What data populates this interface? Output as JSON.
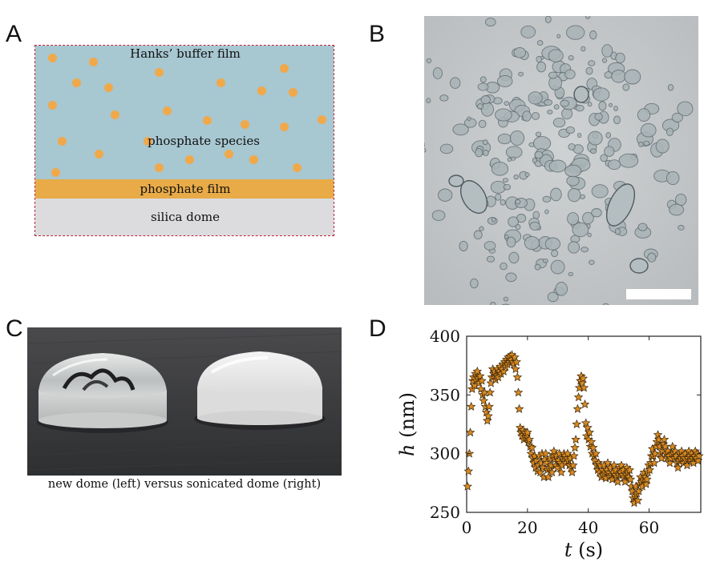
{
  "panels": {
    "a": {
      "letter": "A",
      "labels": {
        "buffer": "Hanks’ buffer film",
        "species": "phosphate species",
        "film": "phosphate film",
        "dome": "silica dome"
      }
    },
    "b": {
      "letter": "B"
    },
    "c": {
      "letter": "C",
      "caption": "new dome (left) versus sonicated dome (right)"
    },
    "d": {
      "letter": "D"
    }
  },
  "colors": {
    "buffer": "#a7c7d1",
    "film": "#e8ab47",
    "dome": "#dcdcdf",
    "particle": "#f0a94a",
    "marker": "#d98a22"
  },
  "chart_data": {
    "type": "scatter",
    "title": "",
    "xlabel_italic": "t",
    "xlabel_unit": "(s)",
    "ylabel_italic": "h",
    "ylabel_unit": "(nm)",
    "xlim": [
      0,
      77
    ],
    "ylim": [
      250,
      400
    ],
    "xticks": [
      0,
      20,
      40,
      60
    ],
    "yticks": [
      250,
      300,
      350,
      400
    ],
    "marker": "star",
    "series": [
      {
        "name": "h",
        "points": [
          [
            0.3,
            272
          ],
          [
            0.6,
            285
          ],
          [
            0.9,
            300
          ],
          [
            1.2,
            318
          ],
          [
            1.5,
            340
          ],
          [
            1.8,
            355
          ],
          [
            2.0,
            362
          ],
          [
            2.3,
            365
          ],
          [
            2.6,
            358
          ],
          [
            2.9,
            368
          ],
          [
            3.2,
            362
          ],
          [
            3.5,
            370
          ],
          [
            3.8,
            364
          ],
          [
            4.1,
            360
          ],
          [
            4.4,
            366
          ],
          [
            4.7,
            355
          ],
          [
            5.0,
            362
          ],
          [
            5.3,
            350
          ],
          [
            5.6,
            345
          ],
          [
            5.9,
            352
          ],
          [
            6.2,
            340
          ],
          [
            6.5,
            335
          ],
          [
            6.8,
            328
          ],
          [
            7.1,
            332
          ],
          [
            7.4,
            340
          ],
          [
            7.7,
            352
          ],
          [
            8.0,
            360
          ],
          [
            8.3,
            365
          ],
          [
            8.6,
            372
          ],
          [
            8.9,
            368
          ],
          [
            9.2,
            370
          ],
          [
            9.5,
            363
          ],
          [
            9.8,
            366
          ],
          [
            10.1,
            372
          ],
          [
            10.4,
            365
          ],
          [
            10.7,
            370
          ],
          [
            11.0,
            374
          ],
          [
            11.3,
            368
          ],
          [
            11.6,
            372
          ],
          [
            11.9,
            376
          ],
          [
            12.2,
            370
          ],
          [
            12.5,
            378
          ],
          [
            12.8,
            374
          ],
          [
            13.1,
            380
          ],
          [
            13.4,
            376
          ],
          [
            13.7,
            382
          ],
          [
            14.0,
            378
          ],
          [
            14.3,
            383
          ],
          [
            14.6,
            380
          ],
          [
            14.9,
            384
          ],
          [
            15.2,
            378
          ],
          [
            15.5,
            376
          ],
          [
            15.8,
            382
          ],
          [
            16.1,
            372
          ],
          [
            16.4,
            378
          ],
          [
            16.7,
            365
          ],
          [
            17.0,
            352
          ],
          [
            17.3,
            338
          ],
          [
            17.6,
            322
          ],
          [
            17.9,
            318
          ],
          [
            18.2,
            315
          ],
          [
            18.5,
            320
          ],
          [
            18.8,
            312
          ],
          [
            19.1,
            318
          ],
          [
            19.4,
            314
          ],
          [
            19.7,
            316
          ],
          [
            20.0,
            318
          ],
          [
            20.3,
            310
          ],
          [
            20.6,
            312
          ],
          [
            20.9,
            306
          ],
          [
            21.2,
            300
          ],
          [
            21.5,
            305
          ],
          [
            21.8,
            296
          ],
          [
            22.1,
            292
          ],
          [
            22.4,
            298
          ],
          [
            22.7,
            288
          ],
          [
            23.0,
            294
          ],
          [
            23.3,
            285
          ],
          [
            23.6,
            290
          ],
          [
            23.9,
            298
          ],
          [
            24.2,
            284
          ],
          [
            24.5,
            292
          ],
          [
            24.8,
            300
          ],
          [
            25.1,
            288
          ],
          [
            25.4,
            280
          ],
          [
            25.7,
            295
          ],
          [
            26.0,
            300
          ],
          [
            26.3,
            292
          ],
          [
            26.6,
            286
          ],
          [
            26.9,
            280
          ],
          [
            27.2,
            288
          ],
          [
            27.5,
            296
          ],
          [
            27.8,
            290
          ],
          [
            28.1,
            284
          ],
          [
            28.4,
            299
          ],
          [
            28.7,
            302
          ],
          [
            29.0,
            295
          ],
          [
            29.3,
            290
          ],
          [
            29.6,
            298
          ],
          [
            29.9,
            288
          ],
          [
            30.2,
            294
          ],
          [
            30.5,
            300
          ],
          [
            30.8,
            292
          ],
          [
            31.1,
            284
          ],
          [
            31.4,
            290
          ],
          [
            31.7,
            296
          ],
          [
            32.0,
            300
          ],
          [
            32.3,
            298
          ],
          [
            32.6,
            292
          ],
          [
            32.9,
            296
          ],
          [
            33.2,
            300
          ],
          [
            33.5,
            294
          ],
          [
            33.8,
            290
          ],
          [
            34.1,
            296
          ],
          [
            34.4,
            288
          ],
          [
            34.7,
            284
          ],
          [
            35.0,
            290
          ],
          [
            35.3,
            298
          ],
          [
            35.6,
            305
          ],
          [
            35.9,
            312
          ],
          [
            36.2,
            325
          ],
          [
            36.5,
            338
          ],
          [
            36.8,
            348
          ],
          [
            37.1,
            356
          ],
          [
            37.4,
            362
          ],
          [
            37.7,
            366
          ],
          [
            38.0,
            360
          ],
          [
            38.3,
            364
          ],
          [
            38.6,
            356
          ],
          [
            38.9,
            342
          ],
          [
            39.2,
            326
          ],
          [
            39.5,
            315
          ],
          [
            39.8,
            322
          ],
          [
            40.1,
            312
          ],
          [
            40.4,
            318
          ],
          [
            40.7,
            306
          ],
          [
            41.0,
            310
          ],
          [
            41.3,
            300
          ],
          [
            41.6,
            305
          ],
          [
            41.9,
            298
          ],
          [
            42.2,
            294
          ],
          [
            42.5,
            300
          ],
          [
            42.8,
            290
          ],
          [
            43.1,
            286
          ],
          [
            43.4,
            292
          ],
          [
            43.7,
            284
          ],
          [
            44.0,
            290
          ],
          [
            44.3,
            280
          ],
          [
            44.6,
            286
          ],
          [
            44.9,
            282
          ],
          [
            45.2,
            290
          ],
          [
            45.5,
            284
          ],
          [
            45.8,
            279
          ],
          [
            46.1,
            286
          ],
          [
            46.4,
            292
          ],
          [
            46.7,
            284
          ],
          [
            47.0,
            280
          ],
          [
            47.3,
            288
          ],
          [
            47.6,
            282
          ],
          [
            47.9,
            278
          ],
          [
            48.2,
            284
          ],
          [
            48.5,
            290
          ],
          [
            48.8,
            282
          ],
          [
            49.1,
            286
          ],
          [
            49.4,
            280
          ],
          [
            49.7,
            276
          ],
          [
            50.0,
            282
          ],
          [
            50.3,
            288
          ],
          [
            50.6,
            284
          ],
          [
            50.9,
            290
          ],
          [
            51.2,
            282
          ],
          [
            51.5,
            286
          ],
          [
            51.8,
            280
          ],
          [
            52.1,
            276
          ],
          [
            52.4,
            282
          ],
          [
            52.7,
            288
          ],
          [
            53.0,
            284
          ],
          [
            53.3,
            280
          ],
          [
            53.6,
            286
          ],
          [
            53.9,
            278
          ],
          [
            54.2,
            272
          ],
          [
            54.5,
            268
          ],
          [
            54.8,
            262
          ],
          [
            55.1,
            258
          ],
          [
            55.4,
            264
          ],
          [
            55.7,
            272
          ],
          [
            56.0,
            266
          ],
          [
            56.3,
            260
          ],
          [
            56.6,
            268
          ],
          [
            56.9,
            274
          ],
          [
            57.2,
            280
          ],
          [
            57.5,
            276
          ],
          [
            57.8,
            272
          ],
          [
            58.1,
            278
          ],
          [
            58.4,
            284
          ],
          [
            58.7,
            280
          ],
          [
            59.0,
            274
          ],
          [
            59.3,
            278
          ],
          [
            59.6,
            284
          ],
          [
            59.9,
            290
          ],
          [
            60.2,
            286
          ],
          [
            60.5,
            292
          ],
          [
            60.8,
            298
          ],
          [
            61.1,
            304
          ],
          [
            61.4,
            298
          ],
          [
            61.7,
            292
          ],
          [
            62.0,
            300
          ],
          [
            62.3,
            306
          ],
          [
            62.6,
            310
          ],
          [
            62.9,
            316
          ],
          [
            63.2,
            312
          ],
          [
            63.5,
            306
          ],
          [
            63.8,
            300
          ],
          [
            64.1,
            296
          ],
          [
            64.4,
            302
          ],
          [
            64.7,
            308
          ],
          [
            65.0,
            312
          ],
          [
            65.3,
            306
          ],
          [
            65.6,
            300
          ],
          [
            65.9,
            296
          ],
          [
            66.2,
            302
          ],
          [
            66.5,
            298
          ],
          [
            66.8,
            292
          ],
          [
            67.1,
            296
          ],
          [
            67.4,
            300
          ],
          [
            67.7,
            306
          ],
          [
            68.0,
            300
          ],
          [
            68.3,
            296
          ],
          [
            68.6,
            302
          ],
          [
            68.9,
            298
          ],
          [
            69.2,
            292
          ],
          [
            69.5,
            288
          ],
          [
            69.8,
            294
          ],
          [
            70.1,
            300
          ],
          [
            70.4,
            296
          ],
          [
            70.7,
            302
          ],
          [
            71.0,
            298
          ],
          [
            71.3,
            292
          ],
          [
            71.6,
            296
          ],
          [
            71.9,
            300
          ],
          [
            72.2,
            294
          ],
          [
            72.5,
            290
          ],
          [
            72.8,
            296
          ],
          [
            73.1,
            302
          ],
          [
            73.4,
            298
          ],
          [
            73.7,
            294
          ],
          [
            74.0,
            300
          ],
          [
            74.3,
            296
          ],
          [
            74.6,
            292
          ],
          [
            74.9,
            298
          ],
          [
            75.2,
            302
          ],
          [
            75.5,
            296
          ],
          [
            75.8,
            300
          ],
          [
            76.1,
            294
          ],
          [
            76.4,
            298
          ]
        ]
      }
    ]
  }
}
